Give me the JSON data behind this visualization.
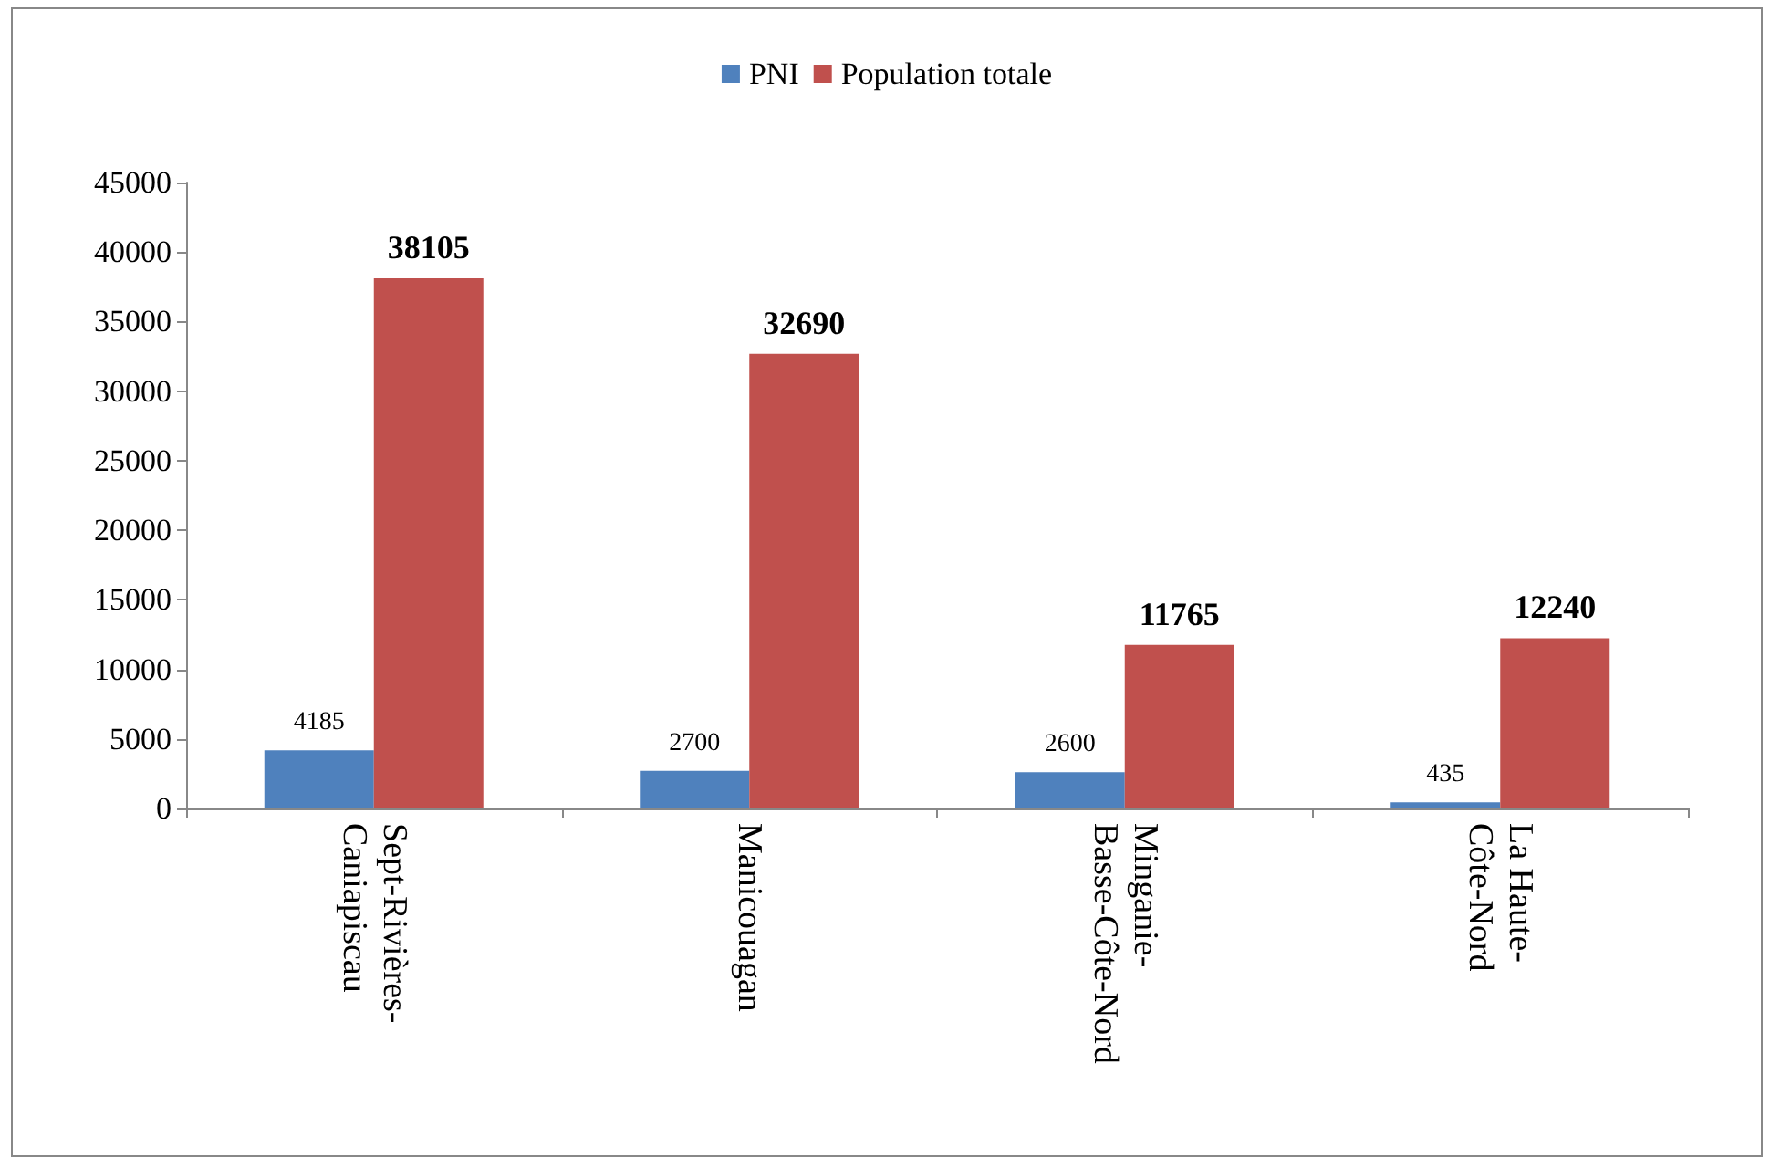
{
  "chart_data": {
    "type": "bar",
    "categories": [
      "Sept-Rivières-\nCaniapiscau",
      "Manicouagan",
      "Minganie-\nBasse-Côte-Nord",
      "La Haute-\nCôte-Nord"
    ],
    "series": [
      {
        "name": "PNI",
        "color": "#4f81bd",
        "values": [
          4185,
          2700,
          2600,
          435
        ]
      },
      {
        "name": "Population totale",
        "color": "#c0504d",
        "values": [
          38105,
          32690,
          11765,
          12240
        ]
      }
    ],
    "ylim": [
      0,
      45000
    ],
    "yticks": [
      0,
      5000,
      10000,
      15000,
      20000,
      25000,
      30000,
      35000,
      40000,
      45000
    ],
    "grid": false,
    "legend": "top",
    "data_labels": true
  }
}
